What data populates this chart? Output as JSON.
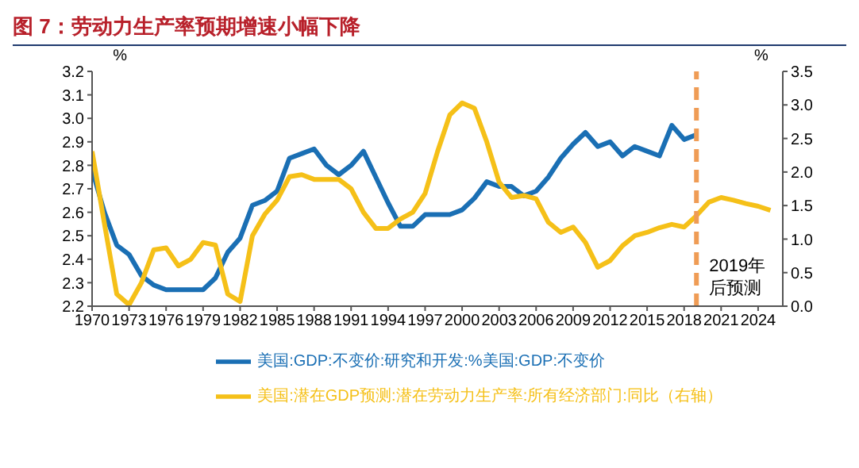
{
  "chart_data": {
    "type": "line",
    "title": "图 7：劳动力生产率预期增速小幅下降",
    "ylabel": "%",
    "y2label": "%",
    "x": [
      1970,
      1971,
      1972,
      1973,
      1974,
      1975,
      1976,
      1977,
      1978,
      1979,
      1980,
      1981,
      1982,
      1983,
      1984,
      1985,
      1986,
      1987,
      1988,
      1989,
      1990,
      1991,
      1992,
      1993,
      1994,
      1995,
      1996,
      1997,
      1998,
      1999,
      2000,
      2001,
      2002,
      2003,
      2004,
      2005,
      2006,
      2007,
      2008,
      2009,
      2010,
      2011,
      2012,
      2013,
      2014,
      2015,
      2016,
      2017,
      2018,
      2019,
      2020,
      2021,
      2022,
      2023,
      2024,
      2025
    ],
    "series": [
      {
        "name": "美国:GDP:不变价:研究和开发:%美国:GDP:不变价",
        "color": "#1a6fb4",
        "x": [
          1970,
          1971,
          1972,
          1973,
          1974,
          1975,
          1976,
          1977,
          1978,
          1979,
          1980,
          1981,
          1982,
          1983,
          1984,
          1985,
          1986,
          1987,
          1988,
          1989,
          1990,
          1991,
          1992,
          1993,
          1994,
          1995,
          1996,
          1997,
          1998,
          1999,
          2000,
          2001,
          2002,
          2003,
          2004,
          2005,
          2006,
          2007,
          2008,
          2009,
          2010,
          2011,
          2012,
          2013,
          2014,
          2015,
          2016,
          2017,
          2018,
          2019
        ],
        "values": [
          2.78,
          2.6,
          2.46,
          2.42,
          2.33,
          2.29,
          2.27,
          2.27,
          2.27,
          2.27,
          2.32,
          2.43,
          2.49,
          2.63,
          2.65,
          2.69,
          2.83,
          2.85,
          2.87,
          2.8,
          2.76,
          2.8,
          2.86,
          2.75,
          2.64,
          2.54,
          2.54,
          2.59,
          2.59,
          2.59,
          2.61,
          2.66,
          2.73,
          2.71,
          2.71,
          2.67,
          2.69,
          2.75,
          2.83,
          2.89,
          2.94,
          2.88,
          2.9,
          2.84,
          2.88,
          2.86,
          2.84,
          2.97,
          2.91,
          2.93
        ]
      },
      {
        "name": "美国:潜在GDP预测:潜在劳动力生产率:所有经济部门:同比（右轴）",
        "color": "#f5c018",
        "axis": "y2",
        "values": [
          2.31,
          1.23,
          0.18,
          0.02,
          0.35,
          0.84,
          0.87,
          0.6,
          0.7,
          0.95,
          0.91,
          0.18,
          0.07,
          1.05,
          1.37,
          1.58,
          1.93,
          1.96,
          1.89,
          1.89,
          1.89,
          1.75,
          1.4,
          1.16,
          1.16,
          1.3,
          1.4,
          1.68,
          2.3,
          2.85,
          3.03,
          2.95,
          2.45,
          1.85,
          1.62,
          1.65,
          1.6,
          1.25,
          1.1,
          1.18,
          0.95,
          0.58,
          0.68,
          0.9,
          1.05,
          1.1,
          1.17,
          1.22,
          1.18,
          1.35,
          1.55,
          1.62,
          1.58,
          1.53,
          1.49,
          1.43
        ]
      }
    ],
    "xlim": [
      1970,
      2026
    ],
    "xticks": [
      1970,
      1973,
      1976,
      1979,
      1982,
      1985,
      1988,
      1991,
      1994,
      1997,
      2000,
      2003,
      2006,
      2009,
      2012,
      2015,
      2018,
      2021,
      2024
    ],
    "ylim": [
      2.2,
      3.2
    ],
    "yticks": [
      {
        "value": 2.2,
        "label": "2.2"
      },
      {
        "value": 2.3,
        "label": "2.3"
      },
      {
        "value": 2.4,
        "label": "2.4"
      },
      {
        "value": 2.5,
        "label": "2.5"
      },
      {
        "value": 2.6,
        "label": "2.6"
      },
      {
        "value": 2.7,
        "label": "2.7"
      },
      {
        "value": 2.8,
        "label": "2.8"
      },
      {
        "value": 2.9,
        "label": "2.9"
      },
      {
        "value": 3.0,
        "label": "3.0"
      },
      {
        "value": 3.1,
        "label": "3.1"
      },
      {
        "value": 3.2,
        "label": "3.2"
      }
    ],
    "y2lim": [
      0,
      3.5
    ],
    "y2ticks": [
      {
        "value": 0,
        "label": "0.0"
      },
      {
        "value": 0.5,
        "label": "0.5"
      },
      {
        "value": 1,
        "label": "1.0"
      },
      {
        "value": 1.5,
        "label": "1.5"
      },
      {
        "value": 2,
        "label": "2.0"
      },
      {
        "value": 2.5,
        "label": "2.5"
      },
      {
        "value": 3,
        "label": "3.0"
      },
      {
        "value": 3.5,
        "label": "3.5"
      }
    ],
    "ref_lines": [
      {
        "axis": "x",
        "value": 2019,
        "label": "2019年后预测",
        "color": "#ef9c55",
        "line_style": "dashed"
      }
    ],
    "grid": false,
    "legend": "bottom",
    "marker": "none",
    "line_style": "solid"
  }
}
